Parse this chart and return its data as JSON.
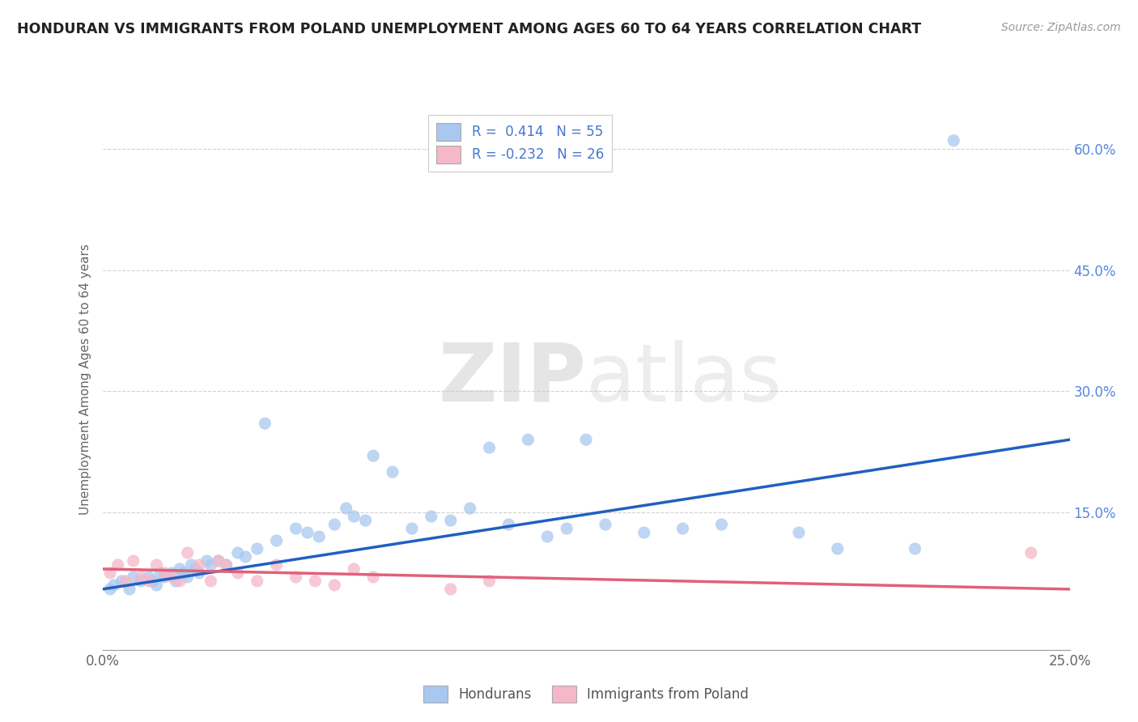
{
  "title": "HONDURAN VS IMMIGRANTS FROM POLAND UNEMPLOYMENT AMONG AGES 60 TO 64 YEARS CORRELATION CHART",
  "source": "Source: ZipAtlas.com",
  "ylabel": "Unemployment Among Ages 60 to 64 years",
  "xlim": [
    0.0,
    0.25
  ],
  "ylim": [
    -0.02,
    0.65
  ],
  "xticks": [
    0.0,
    0.25
  ],
  "xticklabels": [
    "0.0%",
    "25.0%"
  ],
  "ytick_positions": [
    0.15,
    0.3,
    0.45,
    0.6
  ],
  "ytick_labels": [
    "15.0%",
    "30.0%",
    "45.0%",
    "60.0%"
  ],
  "honduran_color": "#A8C8F0",
  "poland_color": "#F4B8C8",
  "honduran_line_color": "#2060C0",
  "poland_line_color": "#E0607A",
  "legend_r_honduran": "R =  0.414",
  "legend_n_honduran": "N = 55",
  "legend_r_poland": "R = -0.232",
  "legend_n_poland": "N = 26",
  "watermark_zip": "ZIP",
  "watermark_atlas": "atlas",
  "background_color": "#ffffff",
  "grid_color": "#cccccc",
  "honduran_scatter_x": [
    0.002,
    0.003,
    0.005,
    0.007,
    0.008,
    0.01,
    0.012,
    0.013,
    0.014,
    0.015,
    0.016,
    0.018,
    0.019,
    0.02,
    0.021,
    0.022,
    0.023,
    0.024,
    0.025,
    0.027,
    0.028,
    0.03,
    0.032,
    0.035,
    0.037,
    0.04,
    0.042,
    0.045,
    0.05,
    0.053,
    0.056,
    0.06,
    0.063,
    0.065,
    0.068,
    0.07,
    0.075,
    0.08,
    0.085,
    0.09,
    0.095,
    0.1,
    0.105,
    0.11,
    0.115,
    0.12,
    0.125,
    0.13,
    0.14,
    0.15,
    0.16,
    0.18,
    0.19,
    0.21,
    0.22
  ],
  "honduran_scatter_y": [
    0.055,
    0.06,
    0.065,
    0.055,
    0.07,
    0.065,
    0.07,
    0.065,
    0.06,
    0.075,
    0.07,
    0.075,
    0.065,
    0.08,
    0.075,
    0.07,
    0.085,
    0.08,
    0.075,
    0.09,
    0.085,
    0.09,
    0.085,
    0.1,
    0.095,
    0.105,
    0.26,
    0.115,
    0.13,
    0.125,
    0.12,
    0.135,
    0.155,
    0.145,
    0.14,
    0.22,
    0.2,
    0.13,
    0.145,
    0.14,
    0.155,
    0.23,
    0.135,
    0.24,
    0.12,
    0.13,
    0.24,
    0.135,
    0.125,
    0.13,
    0.135,
    0.125,
    0.105,
    0.105,
    0.61
  ],
  "poland_scatter_x": [
    0.002,
    0.004,
    0.006,
    0.008,
    0.01,
    0.012,
    0.014,
    0.016,
    0.018,
    0.02,
    0.022,
    0.025,
    0.028,
    0.03,
    0.032,
    0.035,
    0.04,
    0.045,
    0.05,
    0.055,
    0.06,
    0.065,
    0.07,
    0.09,
    0.1,
    0.24
  ],
  "poland_scatter_y": [
    0.075,
    0.085,
    0.065,
    0.09,
    0.07,
    0.065,
    0.085,
    0.075,
    0.07,
    0.065,
    0.1,
    0.085,
    0.065,
    0.09,
    0.085,
    0.075,
    0.065,
    0.085,
    0.07,
    0.065,
    0.06,
    0.08,
    0.07,
    0.055,
    0.065,
    0.1
  ],
  "trend_h_x0": 0.0,
  "trend_h_y0": 0.055,
  "trend_h_x1": 0.25,
  "trend_h_y1": 0.24,
  "trend_p_x0": 0.0,
  "trend_p_y0": 0.08,
  "trend_p_x1": 0.25,
  "trend_p_y1": 0.055
}
